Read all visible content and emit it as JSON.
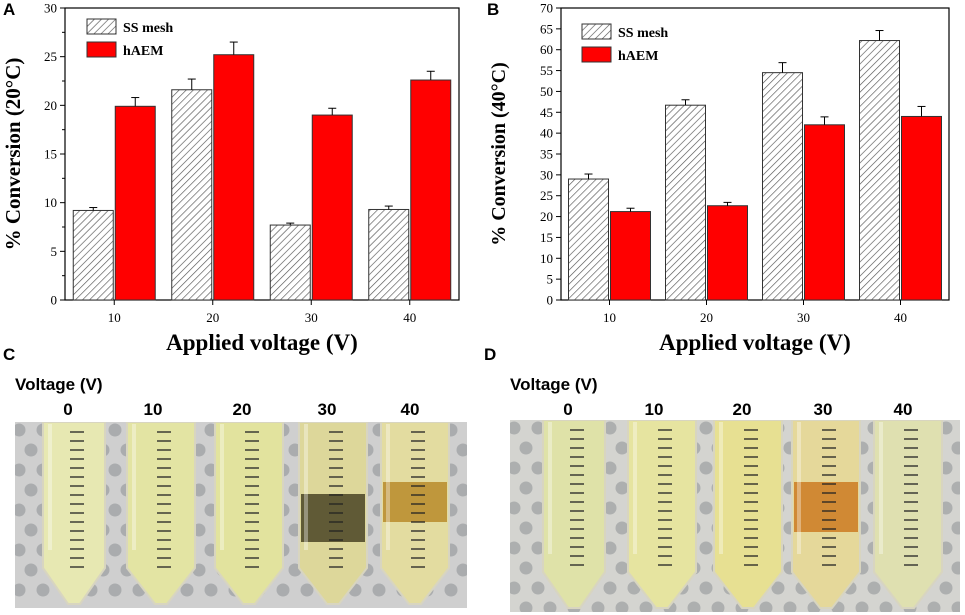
{
  "panels": {
    "a": "A",
    "b": "B",
    "c": "C",
    "d": "D"
  },
  "chart_data": [
    {
      "type": "bar",
      "panel": "A",
      "categories": [
        "10",
        "20",
        "30",
        "40"
      ],
      "series": [
        {
          "name": "SS mesh",
          "values": [
            9.2,
            21.6,
            7.7,
            9.3
          ],
          "errors": [
            0.3,
            1.1,
            0.2,
            0.35
          ],
          "color": "#ffffff",
          "pattern": "hatched"
        },
        {
          "name": "hAEM",
          "values": [
            19.9,
            25.2,
            19.0,
            22.6
          ],
          "errors": [
            0.9,
            1.3,
            0.7,
            0.9
          ],
          "color": "#ff0000",
          "pattern": "solid"
        }
      ],
      "xlabel": "Applied voltage (V)",
      "ylabel": "% Conversion (20°C)",
      "ylim": [
        0,
        30
      ],
      "yticks": [
        0,
        5,
        10,
        15,
        20,
        25,
        30
      ]
    },
    {
      "type": "bar",
      "panel": "B",
      "categories": [
        "10",
        "20",
        "30",
        "40"
      ],
      "series": [
        {
          "name": "SS mesh",
          "values": [
            29.0,
            46.7,
            54.5,
            62.2
          ],
          "errors": [
            1.2,
            1.3,
            2.4,
            2.4
          ],
          "color": "#ffffff",
          "pattern": "hatched"
        },
        {
          "name": "hAEM",
          "values": [
            21.2,
            22.6,
            42.0,
            44.0
          ],
          "errors": [
            0.8,
            0.8,
            1.9,
            2.4
          ],
          "color": "#ff0000",
          "pattern": "solid"
        }
      ],
      "xlabel": "Applied voltage (V)",
      "ylabel": "% Conversion (40°C)",
      "ylim": [
        0,
        70
      ],
      "yticks": [
        0,
        5,
        10,
        15,
        20,
        25,
        30,
        35,
        40,
        45,
        50,
        55,
        60,
        65,
        70
      ]
    }
  ],
  "photo_c": {
    "voltage_label": "Voltage (V)",
    "tube_labels": [
      "0",
      "10",
      "20",
      "30",
      "40"
    ]
  },
  "photo_d": {
    "voltage_label": "Voltage (V)",
    "tube_labels": [
      "0",
      "10",
      "20",
      "30",
      "40"
    ]
  }
}
